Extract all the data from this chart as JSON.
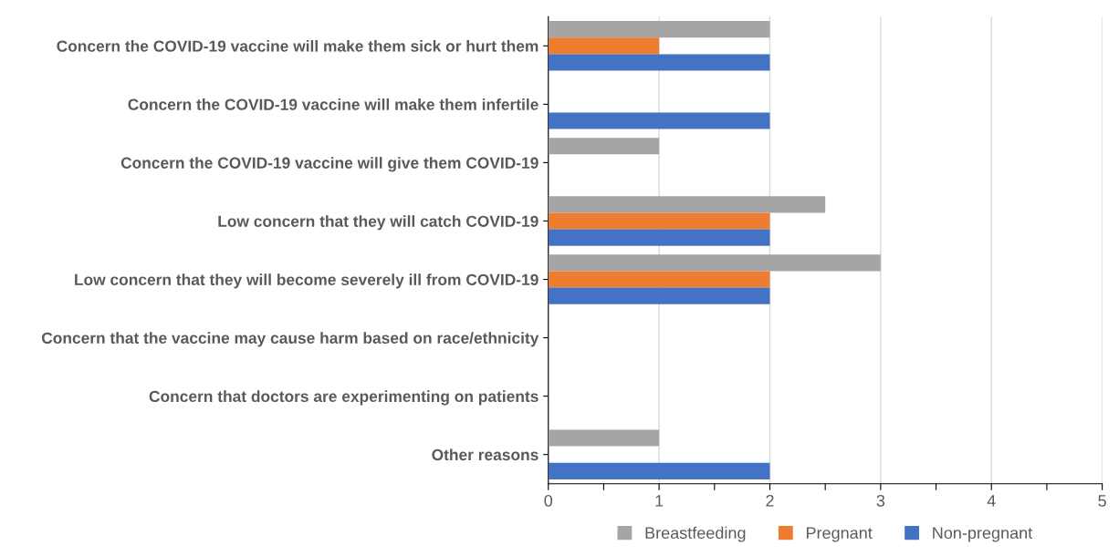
{
  "chart_data": {
    "type": "bar",
    "orientation": "horizontal",
    "categories": [
      "Concern the COVID-19 vaccine will make them sick or hurt them",
      "Concern the COVID-19 vaccine will make them infertile",
      "Concern the COVID-19 vaccine will give them COVID-19",
      "Low concern that they will catch COVID-19",
      "Low concern that they will become severely ill from COVID-19",
      "Concern that the vaccine may cause harm based on race/ethnicity",
      "Concern that doctors are experimenting on patients",
      "Other reasons"
    ],
    "series": [
      {
        "name": "Breastfeeding",
        "color": "#a5a5a5",
        "values": [
          2,
          0,
          1,
          2.5,
          3,
          0,
          0,
          1
        ]
      },
      {
        "name": "Pregnant",
        "color": "#ed7d31",
        "values": [
          1,
          0,
          0,
          2,
          2,
          0,
          0,
          0
        ]
      },
      {
        "name": "Non-pregnant",
        "color": "#4472c4",
        "values": [
          2,
          2,
          0,
          2,
          2,
          0,
          0,
          2
        ]
      }
    ],
    "xlim": [
      0,
      5
    ],
    "xticks": [
      0,
      {
        "value": 0.5,
        "label": null
      },
      1,
      {
        "value": 1.5,
        "label": null
      },
      2,
      {
        "value": 2.5,
        "label": null
      },
      3,
      {
        "value": 3.5,
        "label": null
      },
      4,
      {
        "value": 4.5,
        "label": null
      },
      5
    ],
    "grid": "x",
    "legend": "bottom"
  }
}
